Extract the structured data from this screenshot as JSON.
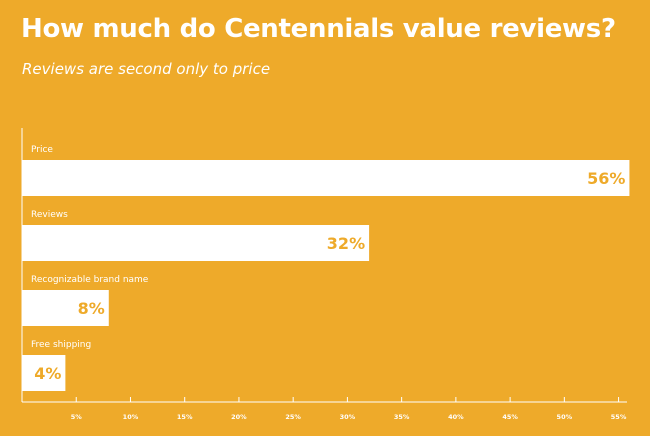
{
  "header": {
    "title": "How much do Centennials value reviews?",
    "subtitle": "Reviews are second only to price"
  },
  "colors": {
    "background": "#EEAA2A",
    "bar": "#FFFFFF",
    "value_text": "#EEAA2A"
  },
  "chart_data": {
    "type": "bar",
    "orientation": "horizontal",
    "categories": [
      "Price",
      "Reviews",
      "Recognizable brand name",
      "Free shipping"
    ],
    "values": [
      56,
      32,
      8,
      4
    ],
    "value_labels": [
      "56%",
      "32%",
      "8%",
      "4%"
    ],
    "xticks": [
      5,
      10,
      15,
      20,
      25,
      30,
      35,
      40,
      45,
      50,
      55
    ],
    "xtick_labels": [
      "5%",
      "10%",
      "15%",
      "20%",
      "25%",
      "30%",
      "35%",
      "40%",
      "45%",
      "50%",
      "55%"
    ],
    "xlim": [
      0,
      55.5
    ],
    "grid": false,
    "legend": "none"
  }
}
